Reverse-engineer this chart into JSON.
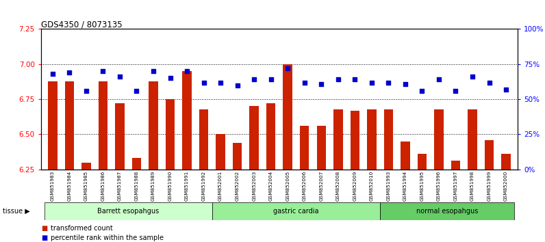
{
  "title": "GDS4350 / 8073135",
  "ylim_left": [
    6.25,
    7.25
  ],
  "ylim_right": [
    0,
    100
  ],
  "yticks_left": [
    6.25,
    6.5,
    6.75,
    7.0,
    7.25
  ],
  "yticks_right": [
    0,
    25,
    50,
    75,
    100
  ],
  "ytick_labels_right": [
    "0%",
    "25%",
    "50%",
    "75%",
    "100%"
  ],
  "hlines": [
    7.0,
    6.75,
    6.5
  ],
  "samples": [
    "GSM851983",
    "GSM851984",
    "GSM851985",
    "GSM851986",
    "GSM851987",
    "GSM851988",
    "GSM851989",
    "GSM851990",
    "GSM851991",
    "GSM851992",
    "GSM852001",
    "GSM852002",
    "GSM852003",
    "GSM852004",
    "GSM852005",
    "GSM852006",
    "GSM852007",
    "GSM852008",
    "GSM852009",
    "GSM852010",
    "GSM851993",
    "GSM851994",
    "GSM851995",
    "GSM851996",
    "GSM851997",
    "GSM851998",
    "GSM851999",
    "GSM852000"
  ],
  "bar_values": [
    6.875,
    6.875,
    6.3,
    6.875,
    6.72,
    6.33,
    6.875,
    6.75,
    6.95,
    6.68,
    6.5,
    6.44,
    6.7,
    6.72,
    7.0,
    6.56,
    6.56,
    6.68,
    6.67,
    6.68,
    6.68,
    6.45,
    6.36,
    6.68,
    6.31,
    6.68,
    6.46,
    6.36
  ],
  "dot_values": [
    68,
    69,
    56,
    70,
    66,
    56,
    70,
    65,
    70,
    62,
    62,
    60,
    64,
    64,
    72,
    62,
    61,
    64,
    64,
    62,
    62,
    61,
    56,
    64,
    56,
    66,
    62,
    57
  ],
  "group_labels": [
    "Barrett esopahgus",
    "gastric cardia",
    "normal esopahgus"
  ],
  "group_ranges": [
    [
      0,
      10
    ],
    [
      10,
      20
    ],
    [
      20,
      28
    ]
  ],
  "group_colors": [
    "#ccffcc",
    "#99ee99",
    "#66cc66"
  ],
  "bar_color": "#cc2200",
  "dot_color": "#0000cc",
  "xticklabel_bg": "#d8d8d8",
  "legend_bar_label": "transformed count",
  "legend_dot_label": "percentile rank within the sample",
  "tissue_label": "tissue"
}
